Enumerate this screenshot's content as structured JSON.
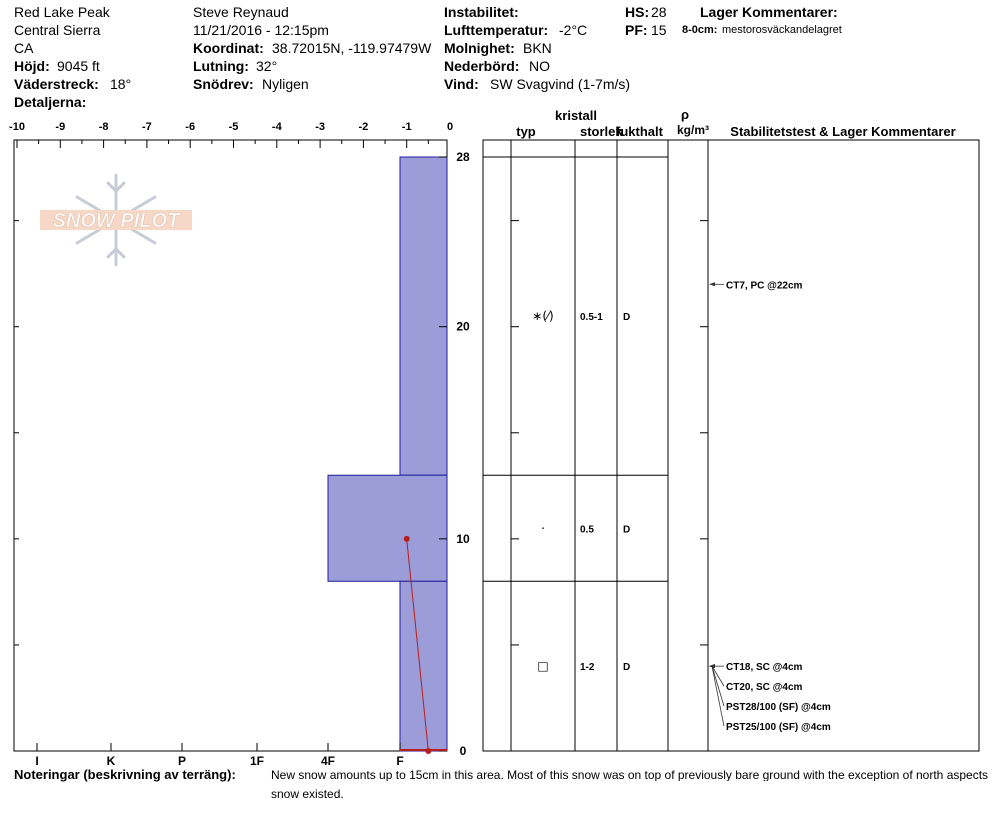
{
  "header": {
    "location": "Red Lake Peak",
    "range": "Central Sierra",
    "state": "CA",
    "elevation_label": "Höjd:",
    "elevation_value": "9045 ft",
    "aspect_label": "Väderstreck:",
    "aspect_value": "18°",
    "details_label": "Detaljerna:",
    "observer": "Steve Reynaud",
    "datetime": "11/21/2016 - 12:15pm",
    "coord_label": "Koordinat:",
    "coord_value": "38.72015N, -119.97479W",
    "slope_label": "Lutning:",
    "slope_value": "32°",
    "drift_label": "Snödrev:",
    "drift_value": "Nyligen",
    "instability_label": "Instabilitet:",
    "airtemp_label": "Lufttemperatur:",
    "airtemp_value": "-2°C",
    "sky_label": "Molnighet:",
    "sky_value": "BKN",
    "precip_label": "Nederbörd:",
    "precip_value": "NO",
    "wind_label": "Vind:",
    "wind_value": "SW Svagvind (1-7m/s)",
    "hs_label": "HS:",
    "hs_value": "28",
    "pf_label": "PF:",
    "pf_value": "15",
    "layer_comments_label": "Lager Kommentarer:",
    "layer_comment_depth": "8-0cm:",
    "layer_comment_text": "mestorosväckandelagret"
  },
  "logo_text": "SNOW PILOT",
  "table_headers": {
    "crystal": "kristall",
    "type": "typ",
    "size": "storlek",
    "moisture": "fukthalt",
    "rho": "ρ",
    "density_unit": "kg/m³",
    "stability": "Stabilitetstest & Lager Kommentarer"
  },
  "notes_label": "Noteringar (beskrivning av terräng):",
  "notes_line1": "New snow amounts up to 15cm in this area.  Most of this snow was on top of previously bare ground with the exception of north aspects where old",
  "notes_line2": "snow existed.",
  "colors": {
    "hardness_fill": "#9c9cd9",
    "hardness_stroke": "#1f1f9a",
    "temperature_line": "#b81d1d",
    "grid": "#000000"
  },
  "chart_data": {
    "type": "bar",
    "x_axis_top": {
      "ticks": [
        -10,
        -9,
        -8,
        -7,
        -6,
        -5,
        -4,
        -3,
        -2,
        -1,
        0
      ],
      "tick_labels": [
        "-10",
        "-9",
        "-8",
        "-7",
        "-6",
        "-5",
        "-4",
        "-3",
        "-2",
        "-1",
        "0"
      ],
      "range": [
        -10,
        0.5
      ]
    },
    "hardness_axis": {
      "labels": [
        "I",
        "K",
        "P",
        "1F",
        "4F",
        "F"
      ]
    },
    "depth_axis": {
      "range": [
        0,
        28
      ],
      "tick_labels": [
        "0",
        "10",
        "20",
        "28"
      ]
    },
    "layers": [
      {
        "top": 28,
        "bottom": 13,
        "hardness": "F",
        "crystal_type": "∗(⁄)",
        "size": "0.5-1",
        "moisture": "D"
      },
      {
        "top": 13,
        "bottom": 8,
        "hardness": "4F",
        "crystal_type": "·",
        "size": "0.5",
        "moisture": "D"
      },
      {
        "top": 8,
        "bottom": 0,
        "hardness": "F",
        "crystal_type": "□",
        "size": "1-2",
        "moisture": "D"
      }
    ],
    "temperature_profile": [
      {
        "depth": 10,
        "temp": -1
      },
      {
        "depth": 0,
        "temp": -0.5
      }
    ],
    "stability_tests": [
      {
        "depth": 22,
        "label": "CT7, PC @22cm"
      },
      {
        "depth": 4,
        "label": "CT18, SC @4cm"
      },
      {
        "depth": 4,
        "label": "CT20, SC @4cm"
      },
      {
        "depth": 4,
        "label": "PST28/100 (SF) @4cm"
      },
      {
        "depth": 4,
        "label": "PST25/100 (SF) @4cm"
      }
    ]
  }
}
